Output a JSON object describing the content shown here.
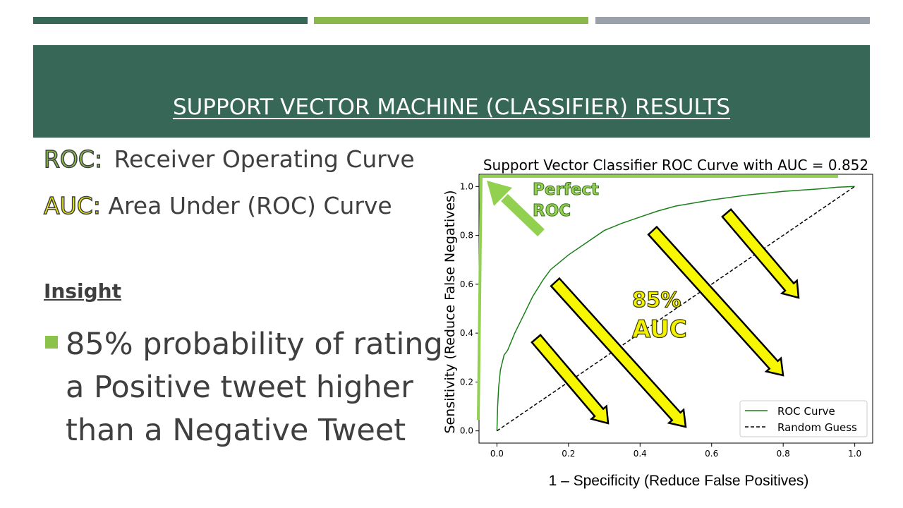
{
  "slide": {
    "title": "SUPPORT VECTOR MACHINE (CLASSIFIER) RESULTS",
    "accent_colors": [
      "#376757",
      "#8bb84a",
      "#9aa1a8"
    ],
    "definitions": [
      {
        "term": "ROC:",
        "text": "Receiver Operating Curve",
        "color": "#8bc34a"
      },
      {
        "term": "AUC:",
        "text": "Area Under (ROC) Curve",
        "color": "#f2f200"
      }
    ],
    "insight_heading": "Insight",
    "insight_text": "85% probability of rating a Positive tweet higher than a Negative Tweet"
  },
  "annotations": {
    "perfect_roc": [
      "Perfect",
      "ROC"
    ],
    "auc_label": [
      "85%",
      "AUC"
    ]
  },
  "chart_data": {
    "type": "line",
    "title": "Support Vector Classifier ROC Curve with AUC = 0.852",
    "xlabel": "1 – Specificity (Reduce False Positives)",
    "ylabel": "Sensitivity (Reduce False Negatives)",
    "xlim": [
      -0.05,
      1.05
    ],
    "ylim": [
      -0.05,
      1.05
    ],
    "xticks": [
      "0.0",
      "0.2",
      "0.4",
      "0.6",
      "0.8",
      "1.0"
    ],
    "yticks": [
      "0.0",
      "0.2",
      "0.4",
      "0.6",
      "0.8",
      "1.0"
    ],
    "legend_position": "bottom-right",
    "series": [
      {
        "name": "ROC Curve",
        "color": "#1a7f1a",
        "style": "solid",
        "x": [
          0.0,
          0.002,
          0.005,
          0.01,
          0.02,
          0.03,
          0.05,
          0.07,
          0.1,
          0.13,
          0.15,
          0.2,
          0.25,
          0.3,
          0.35,
          0.4,
          0.45,
          0.5,
          0.6,
          0.7,
          0.8,
          0.9,
          0.95,
          1.0
        ],
        "y": [
          0.0,
          0.1,
          0.18,
          0.25,
          0.31,
          0.33,
          0.4,
          0.46,
          0.55,
          0.62,
          0.66,
          0.72,
          0.77,
          0.82,
          0.85,
          0.875,
          0.9,
          0.92,
          0.945,
          0.965,
          0.98,
          0.99,
          0.997,
          1.0
        ]
      },
      {
        "name": "Random Guess",
        "color": "#000000",
        "style": "dashed",
        "x": [
          0.0,
          1.0
        ],
        "y": [
          0.0,
          1.0
        ]
      }
    ]
  }
}
